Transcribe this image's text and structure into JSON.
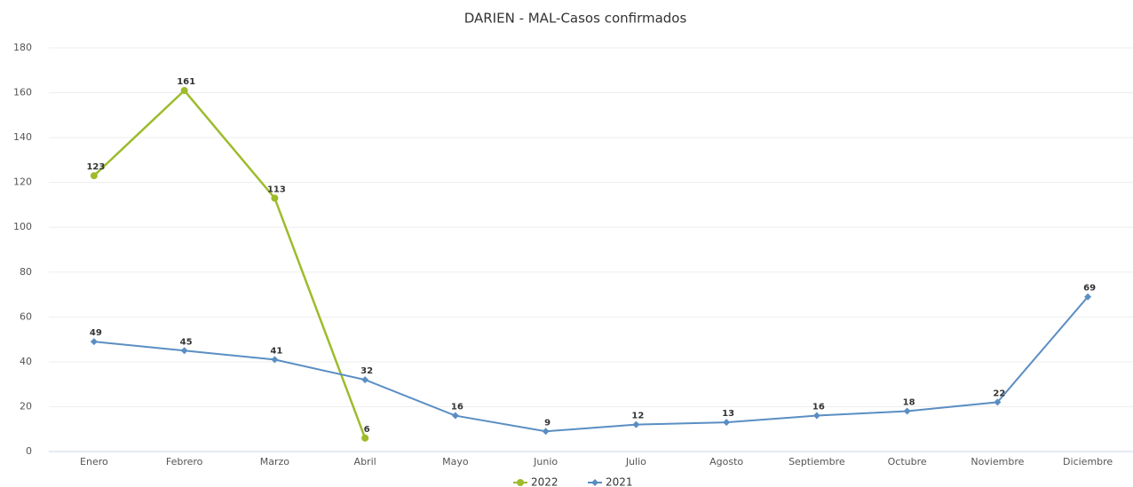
{
  "chart_data": {
    "type": "line",
    "title": "DARIEN - MAL-Casos confirmados",
    "categories": [
      "Enero",
      "Febrero",
      "Marzo",
      "Abril",
      "Mayo",
      "Junio",
      "Julio",
      "Agosto",
      "Septiembre",
      "Octubre",
      "Noviembre",
      "Diciembre"
    ],
    "series": [
      {
        "name": "2022",
        "color": "#9dbb2b",
        "marker": "circle",
        "values": [
          123,
          161,
          113,
          6,
          null,
          null,
          null,
          null,
          null,
          null,
          null,
          null
        ]
      },
      {
        "name": "2021",
        "color": "#5a8ec3",
        "marker": "diamond",
        "values": [
          49,
          45,
          41,
          32,
          16,
          9,
          12,
          13,
          16,
          18,
          22,
          69
        ]
      }
    ],
    "ylim": [
      0,
      180
    ],
    "yticks": [
      0,
      20,
      40,
      60,
      80,
      100,
      120,
      140,
      160,
      180
    ],
    "grid": true,
    "legend": "bottom"
  }
}
